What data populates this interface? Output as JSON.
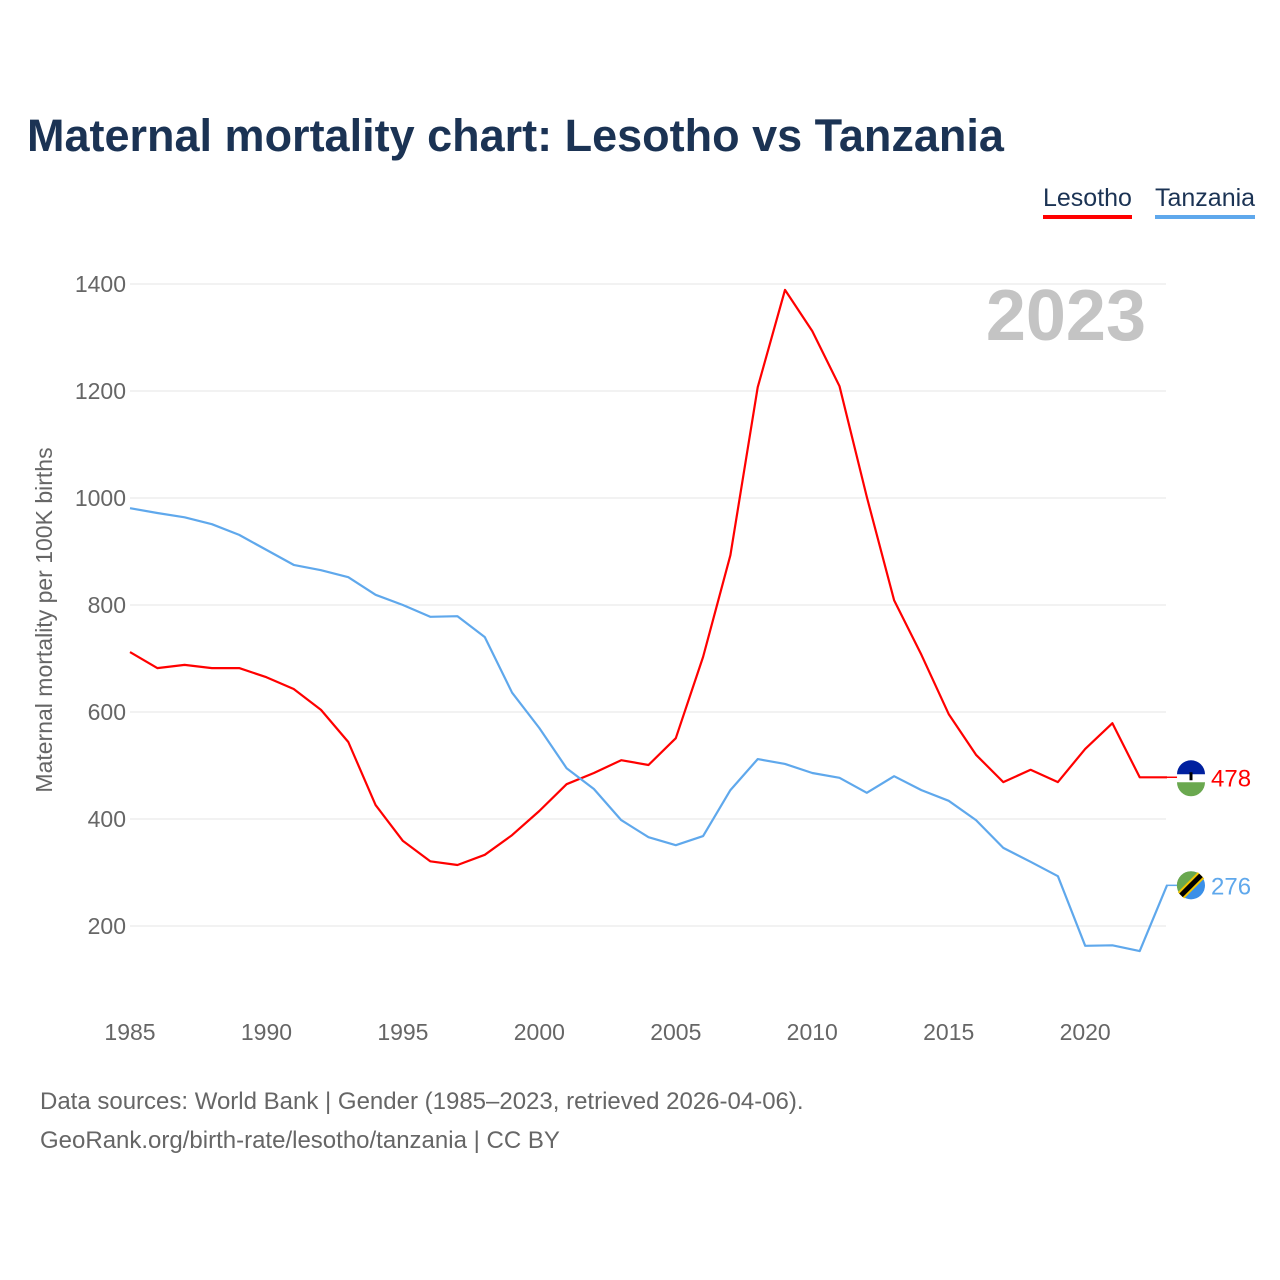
{
  "chart_data": {
    "type": "line",
    "title": "Maternal mortality chart: Lesotho vs Tanzania",
    "xlabel": "",
    "ylabel": "Maternal mortality per 100K births",
    "year_watermark": "2023",
    "xlim": [
      1985,
      2023
    ],
    "ylim": [
      80,
      1420
    ],
    "x_ticks": [
      1985,
      1990,
      1995,
      2000,
      2005,
      2010,
      2015,
      2020
    ],
    "y_ticks": [
      200,
      400,
      600,
      800,
      1000,
      1200,
      1400
    ],
    "grid": true,
    "legend_placement": "top-right",
    "x": [
      1985,
      1986,
      1987,
      1988,
      1989,
      1990,
      1991,
      1992,
      1993,
      1994,
      1995,
      1996,
      1997,
      1998,
      1999,
      2000,
      2001,
      2002,
      2003,
      2004,
      2005,
      2006,
      2007,
      2008,
      2009,
      2010,
      2011,
      2012,
      2013,
      2014,
      2015,
      2016,
      2017,
      2018,
      2019,
      2020,
      2021,
      2022,
      2023
    ],
    "series": [
      {
        "name": "Lesotho",
        "color": "#ff0000",
        "end_label": "478",
        "values": [
          712,
          682,
          688,
          682,
          682,
          665,
          643,
          604,
          544,
          426,
          359,
          321,
          314,
          333,
          370,
          415,
          465,
          486,
          510,
          501,
          551,
          703,
          893,
          1207,
          1389,
          1312,
          1209,
          1002,
          809,
          707,
          596,
          520,
          469,
          492,
          469,
          531,
          579,
          478,
          478
        ]
      },
      {
        "name": "Tanzania",
        "color": "#5fa8ec",
        "end_label": "276",
        "values": [
          981,
          972,
          964,
          951,
          931,
          903,
          875,
          865,
          852,
          819,
          800,
          778,
          779,
          740,
          636,
          570,
          495,
          456,
          398,
          366,
          351,
          368,
          454,
          512,
          503,
          486,
          477,
          449,
          480,
          454,
          434,
          398,
          346,
          320,
          293,
          163,
          164,
          153,
          276
        ]
      }
    ]
  },
  "footer": {
    "line1": "Data sources: World Bank | Gender (1985–2023, retrieved 2026-04-06).",
    "line2": "GeoRank.org/birth-rate/lesotho/tanzania | CC BY"
  }
}
